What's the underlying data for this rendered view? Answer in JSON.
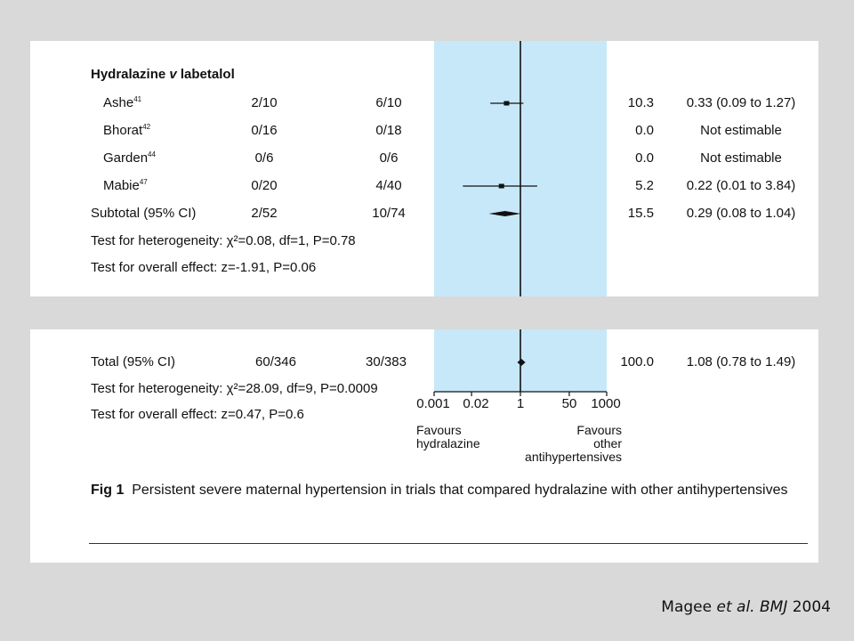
{
  "chart_data": {
    "type": "forest",
    "scale": "log",
    "xlim": [
      0.001,
      1000
    ],
    "ticks": [
      {
        "value": 0.001,
        "label": "0.001"
      },
      {
        "value": 0.02,
        "label": "0.02"
      },
      {
        "value": 1,
        "label": "1"
      },
      {
        "value": 50,
        "label": "50"
      },
      {
        "value": 1000,
        "label": "1000"
      }
    ],
    "favours_left": [
      "Favours",
      "hydralazine"
    ],
    "favours_right": [
      "Favours",
      "other",
      "antihypertensives"
    ],
    "subgroup": {
      "title_prefix": "Hydralazine ",
      "title_italic": "v",
      "title_suffix": " labetalol",
      "studies": [
        {
          "name": "Ashe",
          "ref": "41",
          "hydralazine": "2/10",
          "other": "6/10",
          "weight": "10.3",
          "ci_text": "0.33 (0.09 to 1.27)",
          "or": 0.33,
          "low": 0.09,
          "high": 1.27
        },
        {
          "name": "Bhorat",
          "ref": "42",
          "hydralazine": "0/16",
          "other": "0/18",
          "weight": "0.0",
          "ci_text": "Not estimable",
          "or": null
        },
        {
          "name": "Garden",
          "ref": "44",
          "hydralazine": "0/6",
          "other": "0/6",
          "weight": "0.0",
          "ci_text": "Not estimable",
          "or": null
        },
        {
          "name": "Mabie",
          "ref": "47",
          "hydralazine": "0/20",
          "other": "4/40",
          "weight": "5.2",
          "ci_text": "0.22 (0.01 to 3.84)",
          "or": 0.22,
          "low": 0.01,
          "high": 3.84
        }
      ],
      "subtotal": {
        "label": "Subtotal (95% CI)",
        "hydralazine": "2/52",
        "other": "10/74",
        "weight": "15.5",
        "ci_text": "0.29 (0.08 to 1.04)",
        "or": 0.29,
        "low": 0.08,
        "high": 1.04
      },
      "heterogeneity": "Test for heterogeneity: χ²=0.08, df=1, P=0.78",
      "overall": "Test for overall effect: z=-1.91, P=0.06"
    },
    "total": {
      "label": "Total (95% CI)",
      "hydralazine": "60/346",
      "other": "30/383",
      "weight": "100.0",
      "ci_text": "1.08 (0.78 to 1.49)",
      "or": 1.08,
      "low": 0.78,
      "high": 1.49
    },
    "total_heterogeneity": "Test for heterogeneity: χ²=28.09, df=9, P=0.0009",
    "total_overall": "Test for overall effect: z=0.47, P=0.6"
  },
  "caption": {
    "label": "Fig 1",
    "text": "Persistent severe maternal hypertension in trials that compared hydralazine with other antihypertensives"
  },
  "citation": {
    "author": "Magee ",
    "etal": "et al.",
    "journal": "BMJ",
    "year": " 2004"
  },
  "colors": {
    "band": "#c7e8f8",
    "panel": "#ffffff",
    "background": "#d9d9d9"
  }
}
